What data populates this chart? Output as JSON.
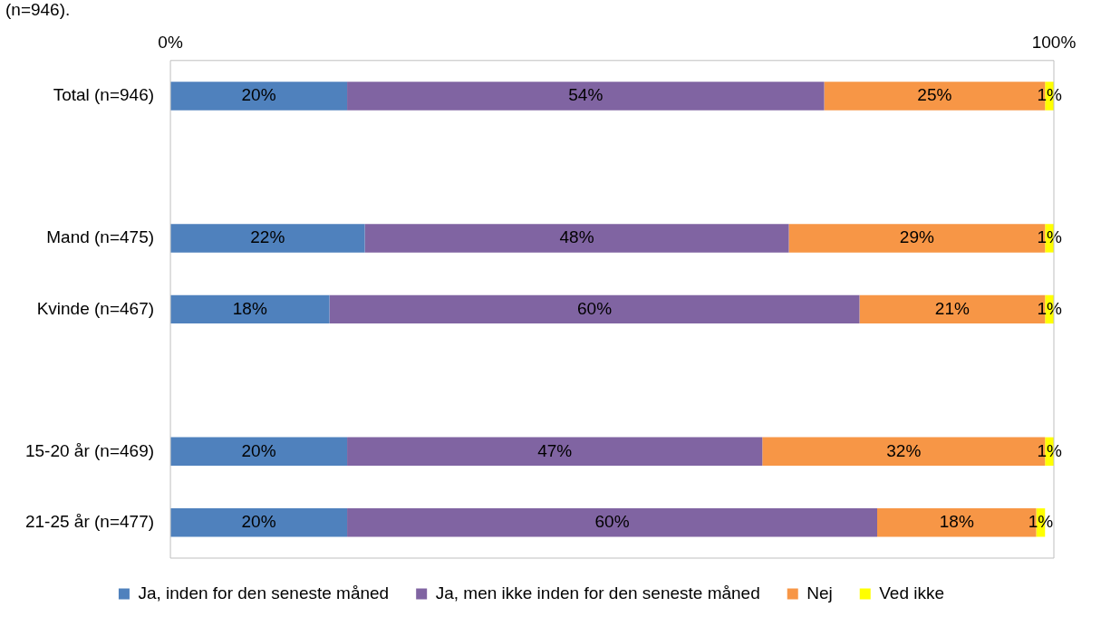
{
  "chart_data": {
    "type": "bar",
    "orientation": "horizontal",
    "stacked": true,
    "annotations": [
      "(n=946)."
    ],
    "categories": [
      "Total (n=946)",
      null,
      "Mand (n=475)",
      "Kvinde (n=467)",
      null,
      "15-20 år (n=469)",
      "21-25 år (n=477)"
    ],
    "series": [
      {
        "name": "Ja, inden for den seneste måned",
        "color": "#4f81bd",
        "values": [
          20,
          null,
          22,
          18,
          null,
          20,
          20
        ],
        "value_labels": [
          "20%",
          null,
          "22%",
          "18%",
          null,
          "20%",
          "20%"
        ]
      },
      {
        "name": "Ja, men ikke inden for den seneste måned",
        "color": "#8064a2",
        "values": [
          54,
          null,
          48,
          60,
          null,
          47,
          60
        ],
        "value_labels": [
          "54%",
          null,
          "48%",
          "60%",
          null,
          "47%",
          "60%"
        ]
      },
      {
        "name": "Nej",
        "color": "#f79646",
        "values": [
          25,
          null,
          29,
          21,
          null,
          32,
          18
        ],
        "value_labels": [
          "25%",
          null,
          "29%",
          "21%",
          null,
          "32%",
          "18%"
        ]
      },
      {
        "name": "Ved ikke",
        "color": "#ffff00",
        "values": [
          1,
          null,
          1,
          1,
          null,
          1,
          1
        ],
        "value_labels": [
          "1%",
          null,
          "1%",
          "1%",
          null,
          "1%",
          "1%"
        ]
      }
    ],
    "xlim": [
      0,
      100
    ],
    "xticks": [
      {
        "value": 0,
        "label": "0%"
      },
      {
        "value": 100,
        "label": "100%"
      }
    ],
    "grid": false,
    "legend": "bottom"
  }
}
